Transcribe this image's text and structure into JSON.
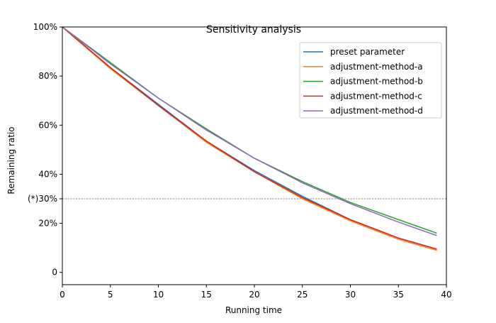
{
  "chart_data": {
    "type": "line",
    "title": "Sensitivity analysis",
    "xlabel": "Running time",
    "ylabel": "Remaining ratio",
    "xlim": [
      0,
      40
    ],
    "ylim": [
      -5,
      100
    ],
    "xticks": [
      0,
      5,
      10,
      15,
      20,
      25,
      30,
      35,
      40
    ],
    "xtick_labels": [
      "0",
      "5",
      "10",
      "15",
      "20",
      "25",
      "30",
      "35",
      "40"
    ],
    "yticks": [
      0,
      20,
      30,
      40,
      60,
      80,
      100
    ],
    "ytick_labels": [
      "0",
      "20%",
      "(*)30%",
      "40%",
      "60%",
      "80%",
      "100%"
    ],
    "reference_line": {
      "y": 30,
      "style": "dashed"
    },
    "grid": false,
    "legend": "top-right",
    "x": [
      0,
      5,
      10,
      15,
      20,
      25,
      30,
      35,
      39
    ],
    "series": [
      {
        "name": "preset parameter",
        "color": "#1f77b4",
        "values": [
          100,
          83.5,
          68.5,
          53.5,
          41.5,
          31.0,
          21.5,
          14.0,
          9.5
        ]
      },
      {
        "name": "adjustment-method-a",
        "color": "#ff7f0e",
        "values": [
          100,
          83.0,
          68.0,
          53.0,
          41.0,
          30.0,
          21.0,
          13.5,
          9.0
        ]
      },
      {
        "name": "adjustment-method-b",
        "color": "#2ca02c",
        "values": [
          100,
          85.5,
          71.0,
          58.5,
          46.5,
          37.0,
          28.5,
          21.5,
          16.0
        ]
      },
      {
        "name": "adjustment-method-c",
        "color": "#d62728",
        "values": [
          100,
          83.5,
          68.0,
          53.5,
          41.0,
          30.5,
          21.5,
          14.0,
          9.5
        ]
      },
      {
        "name": "adjustment-method-d",
        "color": "#9467bd",
        "values": [
          100,
          85.0,
          71.0,
          58.0,
          46.5,
          36.5,
          28.0,
          20.5,
          15.0
        ]
      }
    ]
  }
}
